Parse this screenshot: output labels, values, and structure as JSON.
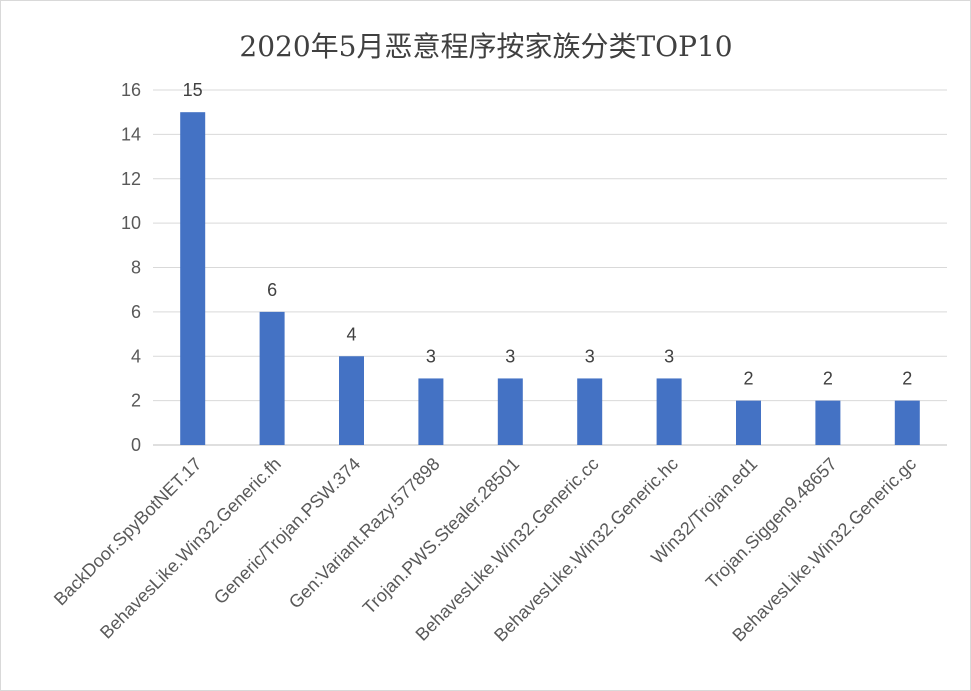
{
  "chart_data": {
    "type": "bar",
    "title": "2020年5月恶意程序按家族分类TOP10",
    "categories": [
      "BackDoor.SpyBotNET.17",
      "BehavesLike.Win32.Generic.fh",
      "Generic/Trojan.PSW.374",
      "Gen:Variant.Razy.577898",
      "Trojan.PWS.Stealer.28501",
      "BehavesLike.Win32.Generic.cc",
      "BehavesLike.Win32.Generic.hc",
      "Win32/Trojan.ed1",
      "Trojan.Siggen9.48657",
      "BehavesLike.Win32.Generic.gc"
    ],
    "values": [
      15,
      6,
      4,
      3,
      3,
      3,
      3,
      2,
      2,
      2
    ],
    "ylim": [
      0,
      16
    ],
    "yticks": [
      0,
      2,
      4,
      6,
      8,
      10,
      12,
      14,
      16
    ],
    "grid": true,
    "legend": "none",
    "colors": {
      "bar": "#4472c4",
      "grid": "#d9d9d9",
      "axis": "#bfbfbf"
    }
  }
}
